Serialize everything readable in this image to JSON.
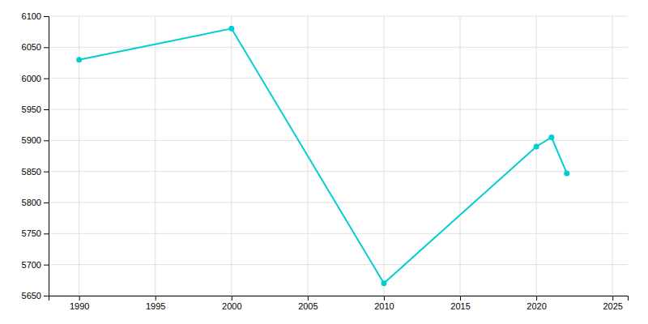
{
  "chart_data": {
    "type": "line",
    "x": [
      1990,
      2000,
      2010,
      2020,
      2021,
      2022
    ],
    "values": [
      6030,
      6080,
      5670,
      5890,
      5905,
      5847
    ],
    "color": "#00CED1",
    "marker": "circle",
    "xlim": [
      1988,
      2026
    ],
    "ylim": [
      5650,
      6100
    ],
    "xticks": [
      1990,
      1995,
      2000,
      2005,
      2010,
      2015,
      2020,
      2025
    ],
    "yticks": [
      5650,
      5700,
      5750,
      5800,
      5850,
      5900,
      5950,
      6000,
      6050,
      6100
    ],
    "grid": true
  }
}
